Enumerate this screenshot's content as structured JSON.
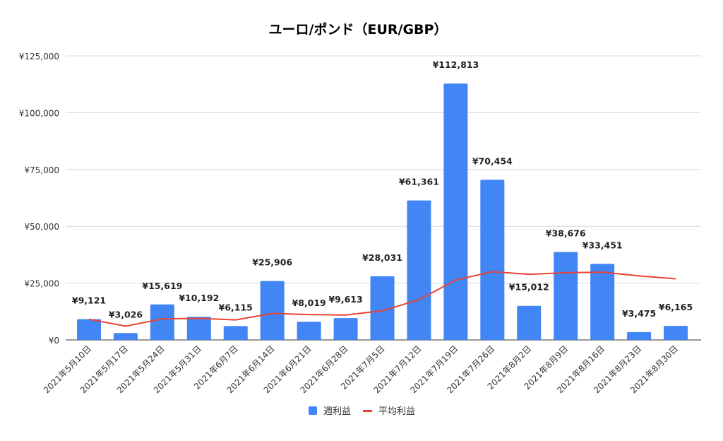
{
  "chart_data": {
    "type": "bar",
    "title": "ユーロ/ポンド（EUR/GBP）",
    "xlabel": "",
    "ylabel": "",
    "ylim": [
      0,
      125000
    ],
    "yticks": [
      0,
      25000,
      50000,
      75000,
      100000,
      125000
    ],
    "ytick_labels": [
      "¥0",
      "¥25,000",
      "¥50,000",
      "¥75,000",
      "¥100,000",
      "¥125,000"
    ],
    "grid": true,
    "legend_position": "bottom",
    "categories": [
      "2021年5月10日",
      "2021年5月17日",
      "2021年5月24日",
      "2021年5月31日",
      "2021年6月7日",
      "2021年6月14日",
      "2021年6月21日",
      "2021年6月28日",
      "2021年7月5日",
      "2021年7月12日",
      "2021年7月19日",
      "2021年7月26日",
      "2021年8月2日",
      "2021年8月9日",
      "2021年8月16日",
      "2021年8月23日",
      "2021年8月30日"
    ],
    "series": [
      {
        "name": "週利益",
        "type": "bar",
        "color": "#4285f4",
        "values": [
          9121,
          3026,
          15619,
          10192,
          6115,
          25906,
          8019,
          9613,
          28031,
          61361,
          112813,
          70454,
          15012,
          38676,
          33451,
          3475,
          6165
        ],
        "data_labels": [
          "¥9,121",
          "¥3,026",
          "¥15,619",
          "¥10,192",
          "¥6,115",
          "¥25,906",
          "¥8,019",
          "¥9,613",
          "¥28,031",
          "¥61,361",
          "¥112,813",
          "¥70,454",
          "¥15,012",
          "¥38,676",
          "¥33,451",
          "¥3,475",
          "¥6,165"
        ]
      },
      {
        "name": "平均利益",
        "type": "line",
        "color": "#ea4335",
        "values": [
          9121,
          6074,
          9255,
          9490,
          8815,
          11663,
          11143,
          10951,
          12849,
          17700,
          26347,
          30022,
          28868,
          29568,
          29827,
          28180,
          26885
        ]
      }
    ]
  }
}
